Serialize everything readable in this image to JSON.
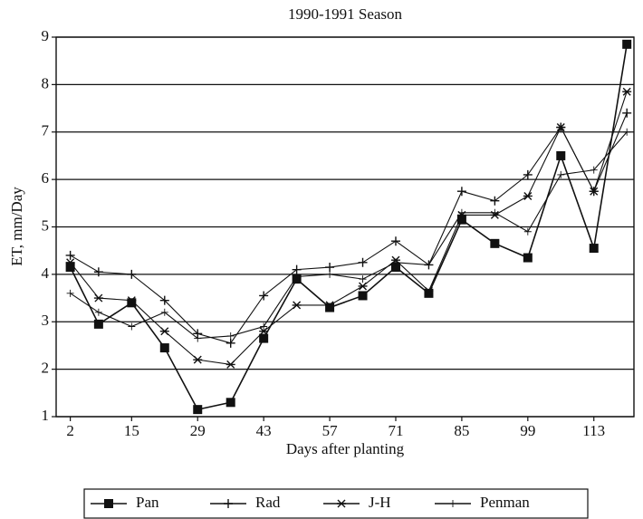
{
  "chart_data": {
    "type": "line",
    "title": "1990-1991 Season",
    "xlabel": "Days after planting",
    "ylabel": "ET, mm/Day",
    "x": [
      2,
      8,
      15,
      22,
      29,
      36,
      43,
      50,
      57,
      64,
      71,
      78,
      85,
      92,
      99,
      106,
      113,
      120
    ],
    "xlim": [
      -1,
      121.5
    ],
    "xticks": [
      2,
      15,
      29,
      43,
      57,
      71,
      85,
      99,
      113
    ],
    "ylim": [
      1,
      9
    ],
    "yticks": [
      1,
      2,
      3,
      4,
      5,
      6,
      7,
      8,
      9
    ],
    "grid": true,
    "legend": "bottom",
    "series": [
      {
        "name": "Pan",
        "color": "#111111",
        "marker": "square",
        "values": [
          4.15,
          2.95,
          3.4,
          2.45,
          1.15,
          1.3,
          2.65,
          3.9,
          3.3,
          3.55,
          4.15,
          3.6,
          5.15,
          4.65,
          4.35,
          6.5,
          4.55,
          8.85
        ]
      },
      {
        "name": "Rad",
        "color": "#111111",
        "marker": "plus",
        "values": [
          4.4,
          4.05,
          4.0,
          3.45,
          2.75,
          2.55,
          3.55,
          4.1,
          4.15,
          4.25,
          4.7,
          4.2,
          5.75,
          5.55,
          6.1,
          7.1,
          5.75,
          7.4
        ]
      },
      {
        "name": "J-H",
        "color": "#111111",
        "marker": "star",
        "values": [
          4.25,
          3.5,
          3.45,
          2.8,
          2.2,
          2.1,
          2.8,
          3.35,
          3.35,
          3.75,
          4.3,
          3.65,
          5.25,
          5.25,
          5.65,
          7.1,
          5.75,
          7.85
        ]
      },
      {
        "name": "Penman",
        "color": "#111111",
        "marker": "thin-plus",
        "values": [
          3.6,
          3.2,
          2.9,
          3.2,
          2.65,
          2.7,
          2.9,
          3.95,
          4.0,
          3.9,
          4.25,
          4.2,
          5.3,
          5.3,
          4.9,
          6.1,
          6.2,
          7.0
        ]
      }
    ]
  }
}
